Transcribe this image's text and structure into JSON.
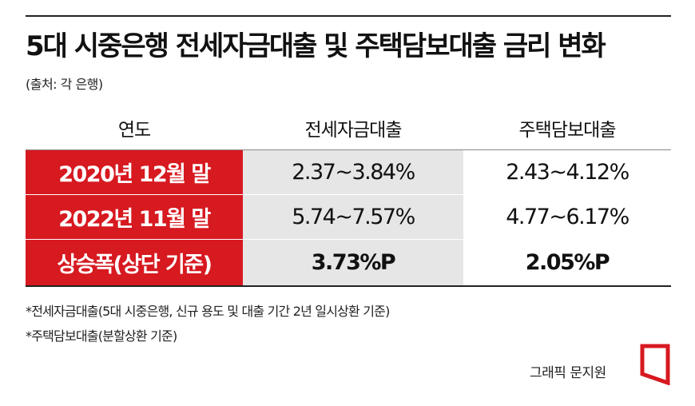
{
  "title": "5대 시중은행 전세자금대출 및 주택담보대출 금리 변화",
  "source": "(출처: 각 은행)",
  "colors": {
    "accent_red": "#d71920",
    "shade_gray": "#e6e6e6"
  },
  "chart_data": {
    "type": "table",
    "columns": [
      "연도",
      "전세자금대출",
      "주택담보대출"
    ],
    "rows": [
      {
        "label": "2020년 12월 말",
        "jeonse": "2.37~3.84%",
        "mortgage": "2.43~4.12%"
      },
      {
        "label": "2022년 11월 말",
        "jeonse": "5.74~7.57%",
        "mortgage": "4.77~6.17%"
      },
      {
        "label": "상승폭(상단 기준)",
        "jeonse": "3.73%P",
        "mortgage": "2.05%P"
      }
    ]
  },
  "notes": [
    "*전세자금대출(5대 시중은행, 신규 용도 및 대출 기간 2년 일시상환 기준)",
    "*주택담보대출(분할상환 기준)"
  ],
  "credit": "그래픽 문지원",
  "logo_icon": "news-logo-icon"
}
